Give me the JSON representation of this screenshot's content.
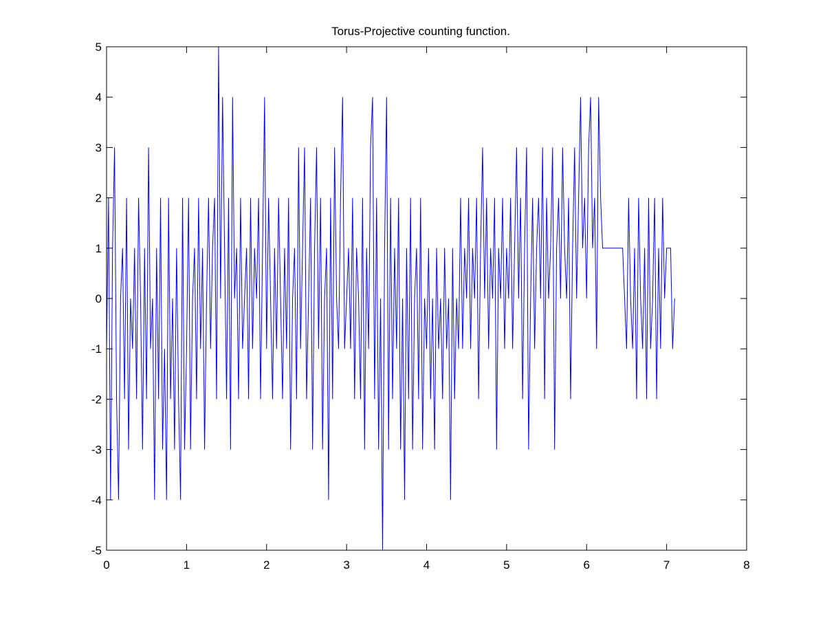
{
  "chart_data": {
    "type": "line",
    "title": "Torus-Projective counting function.",
    "color": "#0000ff",
    "xlim": [
      0,
      8
    ],
    "ylim": [
      -5,
      5
    ],
    "xticks": [
      0,
      1,
      2,
      3,
      4,
      5,
      6,
      7,
      8
    ],
    "yticks": [
      -5,
      -4,
      -3,
      -2,
      -1,
      0,
      1,
      2,
      3,
      4,
      5
    ],
    "x": [
      0,
      0.025,
      0.05,
      0.075,
      0.1,
      0.125,
      0.15,
      0.175,
      0.2,
      0.225,
      0.25,
      0.275,
      0.3,
      0.325,
      0.35,
      0.375,
      0.4,
      0.425,
      0.45,
      0.475,
      0.5,
      0.525,
      0.55,
      0.575,
      0.6,
      0.625,
      0.65,
      0.675,
      0.7,
      0.725,
      0.75,
      0.775,
      0.8,
      0.825,
      0.85,
      0.875,
      0.9,
      0.925,
      0.95,
      0.975,
      1,
      1.025,
      1.05,
      1.075,
      1.1,
      1.125,
      1.15,
      1.175,
      1.2,
      1.225,
      1.25,
      1.275,
      1.3,
      1.325,
      1.35,
      1.375,
      1.4,
      1.425,
      1.45,
      1.475,
      1.5,
      1.525,
      1.55,
      1.575,
      1.6,
      1.625,
      1.65,
      1.675,
      1.7,
      1.725,
      1.75,
      1.775,
      1.8,
      1.825,
      1.85,
      1.875,
      1.9,
      1.925,
      1.95,
      1.975,
      2,
      2.025,
      2.05,
      2.075,
      2.1,
      2.125,
      2.15,
      2.175,
      2.2,
      2.225,
      2.25,
      2.275,
      2.3,
      2.325,
      2.35,
      2.375,
      2.4,
      2.425,
      2.45,
      2.475,
      2.5,
      2.525,
      2.55,
      2.575,
      2.6,
      2.625,
      2.65,
      2.675,
      2.7,
      2.725,
      2.75,
      2.775,
      2.8,
      2.825,
      2.85,
      2.875,
      2.9,
      2.925,
      2.95,
      2.975,
      3,
      3.025,
      3.05,
      3.075,
      3.1,
      3.125,
      3.15,
      3.175,
      3.2,
      3.225,
      3.25,
      3.275,
      3.3,
      3.325,
      3.35,
      3.375,
      3.4,
      3.425,
      3.45,
      3.475,
      3.5,
      3.525,
      3.55,
      3.575,
      3.6,
      3.625,
      3.65,
      3.675,
      3.7,
      3.725,
      3.75,
      3.775,
      3.8,
      3.825,
      3.85,
      3.875,
      3.9,
      3.925,
      3.95,
      3.975,
      4,
      4.025,
      4.05,
      4.075,
      4.1,
      4.125,
      4.15,
      4.175,
      4.2,
      4.225,
      4.25,
      4.275,
      4.3,
      4.325,
      4.35,
      4.375,
      4.4,
      4.425,
      4.45,
      4.475,
      4.5,
      4.525,
      4.55,
      4.575,
      4.6,
      4.625,
      4.65,
      4.675,
      4.7,
      4.725,
      4.75,
      4.775,
      4.8,
      4.825,
      4.85,
      4.875,
      4.9,
      4.925,
      4.95,
      4.975,
      5,
      5.025,
      5.05,
      5.075,
      5.1,
      5.125,
      5.15,
      5.175,
      5.2,
      5.225,
      5.25,
      5.275,
      5.3,
      5.325,
      5.35,
      5.375,
      5.4,
      5.425,
      5.45,
      5.475,
      5.5,
      5.525,
      5.55,
      5.575,
      5.6,
      5.625,
      5.65,
      5.675,
      5.7,
      5.725,
      5.75,
      5.775,
      5.8,
      5.825,
      5.85,
      5.875,
      5.9,
      5.925,
      5.95,
      5.975,
      6,
      6.025,
      6.05,
      6.075,
      6.1,
      6.125,
      6.15,
      6.175,
      6.2,
      6.225,
      6.25,
      6.275,
      6.3,
      6.325,
      6.35,
      6.375,
      6.4,
      6.425,
      6.45,
      6.475,
      6.5,
      6.525,
      6.55,
      6.575,
      6.6,
      6.625,
      6.65,
      6.675,
      6.7,
      6.725,
      6.75,
      6.775,
      6.8,
      6.825,
      6.85,
      6.875,
      6.9,
      6.925,
      6.95,
      6.975,
      7,
      7.025,
      7.05,
      7.075,
      7.1
    ],
    "values": [
      -1,
      2,
      -4,
      1,
      3,
      -2,
      -4,
      0,
      1,
      -2,
      2,
      -3,
      0,
      -1,
      1,
      -2,
      2,
      0,
      -3,
      1,
      -2,
      3,
      -1,
      0,
      -4,
      1,
      -2,
      2,
      -3,
      -1,
      -4,
      2,
      -2,
      0,
      -3,
      1,
      -2,
      -4,
      2,
      -3,
      -1,
      2,
      -3,
      0,
      1,
      -2,
      2,
      -1,
      1,
      -3,
      0,
      2,
      -1,
      1,
      2,
      -2,
      5,
      0,
      4,
      1,
      -2,
      2,
      -3,
      4,
      0,
      1,
      -2,
      2,
      -1,
      0,
      1,
      -2,
      2,
      -1,
      1,
      0,
      2,
      -2,
      1,
      4,
      -1,
      2,
      0,
      -2,
      1,
      -1,
      2,
      0,
      -2,
      1,
      -1,
      2,
      -3,
      0,
      1,
      -2,
      3,
      -1,
      1,
      3,
      -2,
      0,
      2,
      -3,
      1,
      3,
      -1,
      2,
      -3,
      0,
      1,
      -4,
      2,
      -2,
      3,
      0,
      -1,
      2,
      4,
      -1,
      0,
      1,
      -1,
      2,
      -2,
      1,
      0,
      -2,
      2,
      -3,
      1,
      -1,
      3,
      4,
      -2,
      2,
      -3,
      0,
      -5,
      1,
      4,
      -3,
      2,
      -2,
      1,
      -1,
      2,
      -3,
      0,
      -4,
      1,
      -2,
      2,
      -3,
      0,
      1,
      -2,
      2,
      -3,
      0,
      -1,
      1,
      -2,
      0,
      -3,
      1,
      -1,
      0,
      -2,
      1,
      -1,
      0,
      -4,
      1,
      -2,
      0,
      -1,
      2,
      -1,
      1,
      0,
      2,
      -1,
      1,
      0,
      2,
      -2,
      1,
      3,
      0,
      2,
      -1,
      1,
      0,
      2,
      -3,
      1,
      0,
      2,
      -1,
      1,
      0,
      2,
      -1,
      1,
      3,
      0,
      2,
      -2,
      1,
      3,
      -3,
      0,
      2,
      -1,
      1,
      2,
      0,
      3,
      -2,
      2,
      0,
      1,
      3,
      -3,
      1,
      2,
      0,
      3,
      1,
      0,
      2,
      -2,
      1,
      3,
      0,
      2,
      4,
      1,
      2,
      0,
      3,
      4,
      1,
      2,
      -1,
      4,
      2,
      1,
      1,
      1,
      1,
      1,
      1,
      1,
      1,
      1,
      1,
      1,
      0,
      -1,
      2,
      0,
      -1,
      1,
      -2,
      2,
      0,
      -1,
      1,
      -2,
      2,
      -1,
      0,
      2,
      -2,
      1,
      -1,
      2,
      0,
      1,
      1,
      1,
      -1,
      0
    ]
  }
}
